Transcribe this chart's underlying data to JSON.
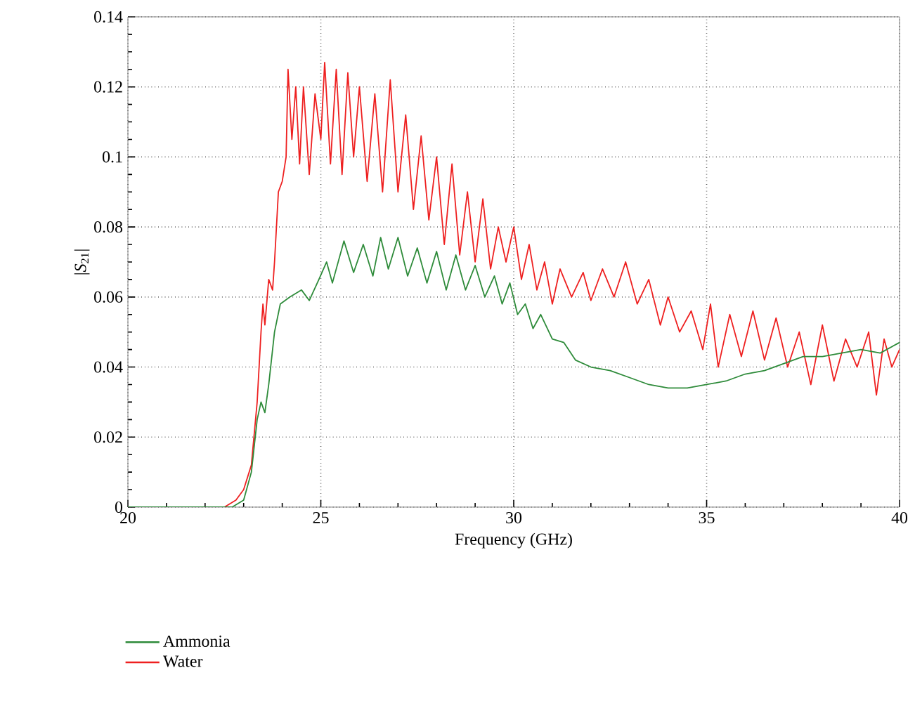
{
  "chart_data": {
    "type": "line",
    "xlabel": "Frequency (GHz)",
    "ylabel": "|*S*$_{21}$|",
    "xlim": [
      20,
      40
    ],
    "xticks": [
      20,
      25,
      30,
      35,
      40
    ],
    "ylim": [
      0,
      0.14
    ],
    "yticks": [
      0,
      0.02,
      0.04,
      0.06,
      0.08,
      0.1,
      0.12,
      0.14
    ],
    "grid": true,
    "legend": "bottom left",
    "marker": "none",
    "line_style": "solid",
    "series": [
      {
        "name": "Ammonia",
        "color": "#2e8b3a",
        "x": [
          20,
          22.7,
          23.0,
          23.2,
          23.35,
          23.45,
          23.55,
          23.65,
          23.8,
          23.95,
          24.2,
          24.5,
          24.7,
          24.95,
          25.15,
          25.3,
          25.6,
          25.85,
          26.1,
          26.35,
          26.55,
          26.75,
          27.0,
          27.25,
          27.5,
          27.75,
          28.0,
          28.25,
          28.5,
          28.75,
          29.0,
          29.25,
          29.5,
          29.7,
          29.9,
          30.1,
          30.3,
          30.5,
          30.7,
          31.0,
          31.3,
          31.6,
          32.0,
          32.5,
          33.0,
          33.5,
          34.0,
          34.5,
          35.0,
          35.5,
          36.0,
          36.5,
          37.0,
          37.5,
          38.0,
          38.5,
          39.0,
          39.5,
          40
        ],
        "values": [
          0,
          0,
          0.002,
          0.01,
          0.025,
          0.03,
          0.027,
          0.035,
          0.05,
          0.058,
          0.06,
          0.062,
          0.059,
          0.065,
          0.07,
          0.064,
          0.076,
          0.067,
          0.075,
          0.066,
          0.077,
          0.068,
          0.077,
          0.066,
          0.074,
          0.064,
          0.073,
          0.062,
          0.072,
          0.062,
          0.069,
          0.06,
          0.066,
          0.058,
          0.064,
          0.055,
          0.058,
          0.051,
          0.055,
          0.048,
          0.047,
          0.042,
          0.04,
          0.039,
          0.037,
          0.035,
          0.034,
          0.034,
          0.035,
          0.036,
          0.038,
          0.039,
          0.041,
          0.043,
          0.043,
          0.044,
          0.045,
          0.044,
          0.047
        ]
      },
      {
        "name": "Water",
        "color": "#ee2020",
        "x": [
          20,
          22.5,
          22.8,
          23.0,
          23.2,
          23.35,
          23.45,
          23.5,
          23.55,
          23.65,
          23.75,
          23.8,
          23.9,
          24.0,
          24.1,
          24.15,
          24.25,
          24.35,
          24.45,
          24.55,
          24.7,
          24.85,
          25.0,
          25.1,
          25.25,
          25.4,
          25.55,
          25.7,
          25.85,
          26.0,
          26.2,
          26.4,
          26.6,
          26.8,
          27.0,
          27.2,
          27.4,
          27.6,
          27.8,
          28.0,
          28.2,
          28.4,
          28.6,
          28.8,
          29.0,
          29.2,
          29.4,
          29.6,
          29.8,
          30.0,
          30.2,
          30.4,
          30.6,
          30.8,
          31.0,
          31.2,
          31.5,
          31.8,
          32.0,
          32.3,
          32.6,
          32.9,
          33.2,
          33.5,
          33.8,
          34.0,
          34.3,
          34.6,
          34.9,
          35.1,
          35.3,
          35.6,
          35.9,
          36.2,
          36.5,
          36.8,
          37.1,
          37.4,
          37.7,
          38.0,
          38.3,
          38.6,
          38.9,
          39.2,
          39.4,
          39.6,
          39.8,
          40
        ],
        "values": [
          0,
          0,
          0.002,
          0.005,
          0.012,
          0.03,
          0.05,
          0.058,
          0.052,
          0.065,
          0.062,
          0.07,
          0.09,
          0.093,
          0.1,
          0.125,
          0.105,
          0.12,
          0.098,
          0.12,
          0.095,
          0.118,
          0.105,
          0.127,
          0.098,
          0.125,
          0.095,
          0.124,
          0.1,
          0.12,
          0.093,
          0.118,
          0.09,
          0.122,
          0.09,
          0.112,
          0.085,
          0.106,
          0.082,
          0.1,
          0.075,
          0.098,
          0.072,
          0.09,
          0.07,
          0.088,
          0.068,
          0.08,
          0.07,
          0.08,
          0.065,
          0.075,
          0.062,
          0.07,
          0.058,
          0.068,
          0.06,
          0.067,
          0.059,
          0.068,
          0.06,
          0.07,
          0.058,
          0.065,
          0.052,
          0.06,
          0.05,
          0.056,
          0.045,
          0.058,
          0.04,
          0.055,
          0.043,
          0.056,
          0.042,
          0.054,
          0.04,
          0.05,
          0.035,
          0.052,
          0.036,
          0.048,
          0.04,
          0.05,
          0.032,
          0.048,
          0.04,
          0.045
        ]
      }
    ]
  }
}
